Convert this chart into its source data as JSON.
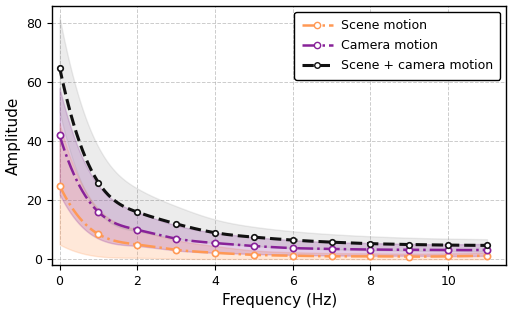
{
  "title": "",
  "xlabel": "Frequency (Hz)",
  "ylabel": "Amplitude",
  "xlim": [
    -0.2,
    11.5
  ],
  "ylim": [
    -2,
    86
  ],
  "yticks": [
    0,
    20,
    40,
    60,
    80
  ],
  "xticks": [
    0,
    2,
    4,
    6,
    8,
    10
  ],
  "scene_color": "#FF9955",
  "camera_color": "#882299",
  "combined_color": "#111111",
  "scene_fill_alpha": 0.22,
  "camera_fill_alpha": 0.22,
  "combined_fill_alpha": 0.15,
  "freq": [
    0,
    1,
    2,
    3,
    4,
    5,
    6,
    7,
    8,
    9,
    10,
    11
  ],
  "scene_mean": [
    25.0,
    8.5,
    5.0,
    3.2,
    2.2,
    1.5,
    1.2,
    1.0,
    1.0,
    0.9,
    1.0,
    1.2
  ],
  "scene_low": [
    5.0,
    1.0,
    0.5,
    0.2,
    0.1,
    0.1,
    0.1,
    0.1,
    0.0,
    0.0,
    0.0,
    0.0
  ],
  "scene_high": [
    46.0,
    17.0,
    10.0,
    6.5,
    4.5,
    3.0,
    2.4,
    2.1,
    2.0,
    1.9,
    2.0,
    2.3
  ],
  "camera_mean": [
    42.0,
    16.0,
    10.0,
    7.0,
    5.5,
    4.5,
    3.8,
    3.5,
    3.3,
    3.2,
    3.1,
    3.2
  ],
  "camera_low": [
    22.0,
    7.0,
    4.5,
    3.0,
    2.2,
    1.8,
    1.5,
    1.3,
    1.2,
    1.2,
    1.1,
    1.2
  ],
  "camera_high": [
    58.0,
    25.0,
    16.0,
    11.5,
    9.0,
    7.5,
    6.5,
    5.8,
    5.5,
    5.2,
    5.1,
    5.2
  ],
  "combined_mean": [
    65.0,
    26.0,
    16.0,
    12.0,
    9.0,
    7.5,
    6.5,
    5.8,
    5.3,
    5.0,
    4.8,
    4.7
  ],
  "combined_low": [
    50.0,
    16.0,
    9.5,
    7.0,
    5.5,
    4.5,
    3.8,
    3.4,
    3.1,
    2.9,
    2.8,
    2.7
  ],
  "combined_high": [
    82.0,
    38.0,
    24.0,
    18.0,
    13.5,
    11.0,
    9.5,
    8.5,
    7.8,
    7.3,
    7.0,
    6.8
  ],
  "legend_labels": [
    "Scene motion",
    "Camera motion",
    "Scene + camera motion"
  ],
  "marker_style": "o",
  "marker_size": 4.5,
  "marker_facecolor": "white",
  "linewidth": 1.8,
  "grid_color": "#aaaaaa",
  "grid_linestyle": "--",
  "grid_alpha": 0.6,
  "figsize": [
    5.12,
    3.14
  ],
  "dpi": 100
}
